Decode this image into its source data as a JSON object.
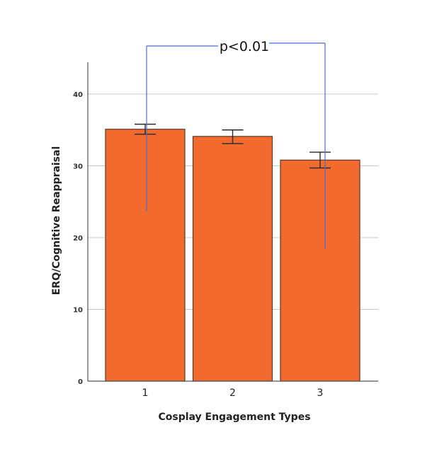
{
  "chart_data": {
    "type": "bar",
    "title": "",
    "xlabel": "Cosplay Engagement Types",
    "ylabel": "ERQ/Cognitive Reappraisal",
    "categories": [
      "1",
      "2",
      "3"
    ],
    "values": [
      35.1,
      34.1,
      30.8
    ],
    "error_bars": [
      {
        "low": 34.4,
        "high": 35.8
      },
      {
        "low": 33.1,
        "high": 35.0
      },
      {
        "low": 29.7,
        "high": 31.9
      }
    ],
    "ylim": [
      0,
      44
    ],
    "yticks": [
      0,
      10,
      20,
      30,
      40
    ],
    "grid": true,
    "bar_color": "#f26a2e",
    "bar_edge_color": "#5a3a2a",
    "gridline_color": "#c8c8c8",
    "annotation": {
      "text": "p<0.01",
      "color": "#4a6fd0",
      "from_category": "1",
      "to_category": "3"
    }
  }
}
